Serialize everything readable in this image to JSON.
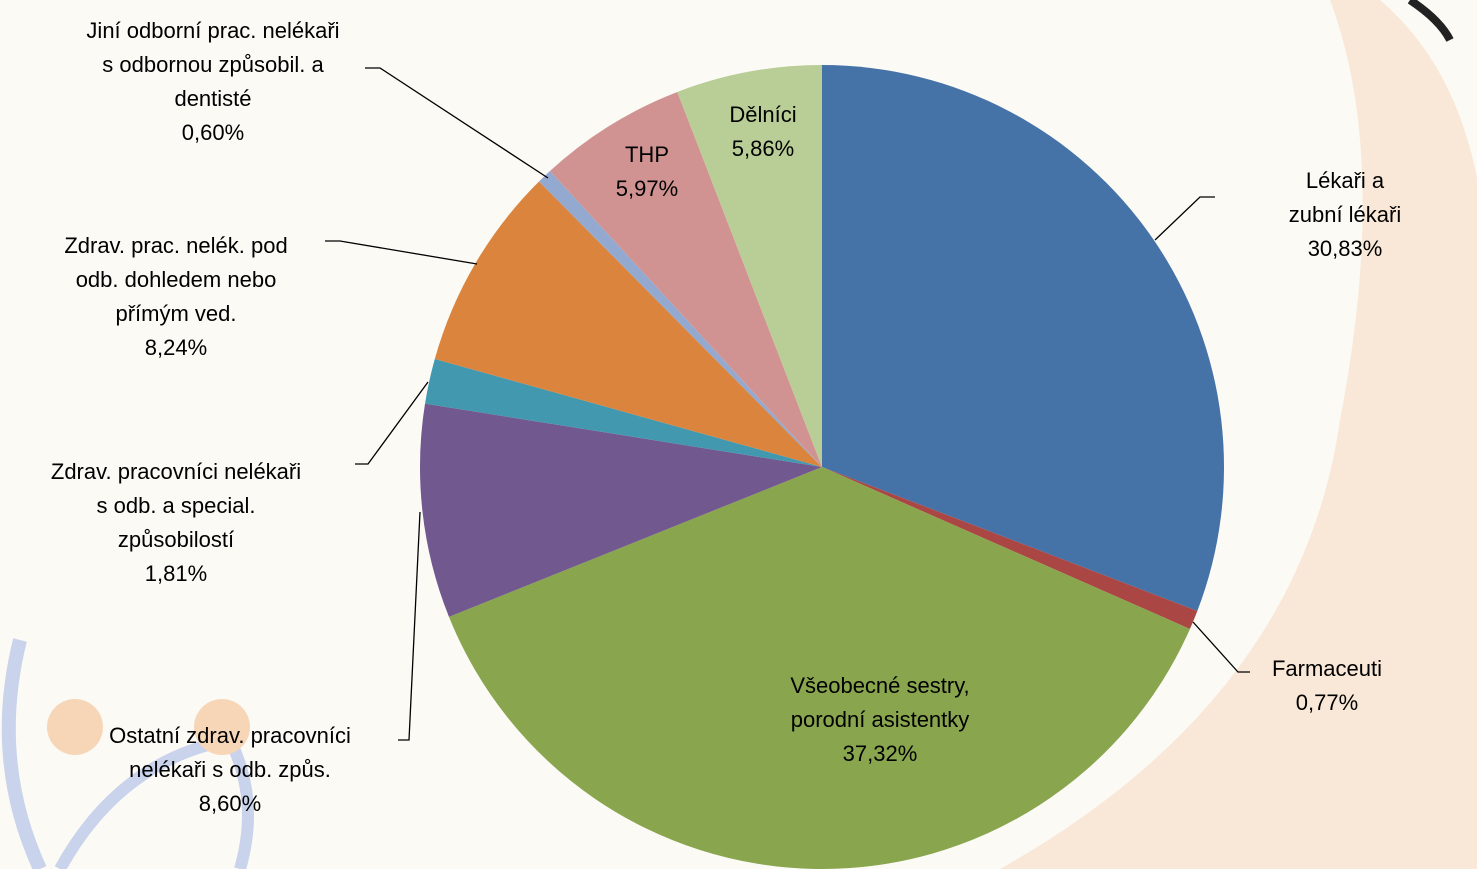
{
  "chart_data": {
    "type": "pie",
    "categories": [
      "Lékaři a zubní lékaři",
      "Farmaceuti",
      "Všeobecné sestry,\nporodní asistentky",
      "Ostatní zdrav. pracovníci\nnelékaři s odb. způs.",
      "Zdrav. pracovníci nelékaři\ns odb. a special.\nzpůsobilostí",
      "Zdrav. prac. nelék. pod\nodb. dohledem nebo\npřímým ved.",
      "Jiní odborní prac. nelékaři\ns odbornou způsobil. a\ndentisté",
      "THP",
      "Dělníci"
    ],
    "values": [
      30.83,
      0.77,
      37.32,
      8.6,
      1.81,
      8.24,
      0.6,
      5.97,
      5.86
    ],
    "value_labels": [
      "30,83%",
      "0,77%",
      "37,32%",
      "8,60%",
      "1,81%",
      "8,24%",
      "0,60%",
      "5,97%",
      "5,86%"
    ],
    "colors": [
      "#4572a7",
      "#aa4643",
      "#89a54e",
      "#71588f",
      "#4198af",
      "#db843d",
      "#93a9cf",
      "#d19392",
      "#b9cd96"
    ]
  }
}
